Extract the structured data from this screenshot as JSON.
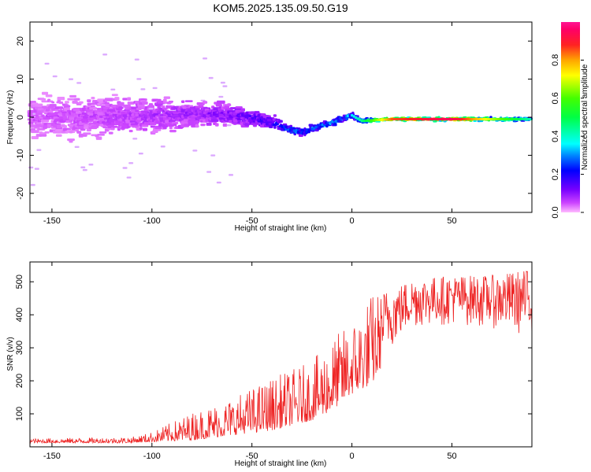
{
  "title": "KOM5.2025.135.09.50.G19",
  "colors": {
    "snr_line": "#ee2222",
    "spec_outer": "#d9a6ff",
    "spec_core": "#7a1fff",
    "spec_dark": "#3a16d8"
  },
  "chart_data": [
    {
      "type": "heatmap",
      "panel": "top",
      "xlabel": "Height of straight line (km)",
      "ylabel": "Frequency (Hz)",
      "xlim": [
        -161,
        90
      ],
      "ylim": [
        -25,
        25
      ],
      "x_ticks": [
        -150,
        -100,
        -50,
        0,
        50
      ],
      "y_ticks": [
        -20,
        -10,
        0,
        10,
        20
      ],
      "colorbar": {
        "label": "Normalized spectral amplitude",
        "range": [
          0,
          1
        ],
        "ticks": [
          "0.0",
          "0.2",
          "0.4",
          "0.6",
          "0.8"
        ],
        "tick_values": [
          0,
          0.2,
          0.4,
          0.6,
          0.8
        ],
        "colormap": "pink-purple-blue-cyan-green-yellow-red-magenta"
      },
      "ridge": {
        "x": [
          -160,
          -130,
          -100,
          -75,
          -50,
          -40,
          -30,
          -25,
          -20,
          -10,
          0,
          5,
          20,
          50,
          90
        ],
        "freq": [
          0,
          0,
          0.5,
          1,
          0,
          -1.5,
          -3.5,
          -4,
          -3,
          -1.5,
          0.5,
          -1,
          -0.5,
          -0.5,
          -0.5
        ],
        "amplitude": [
          0.05,
          0.06,
          0.08,
          0.1,
          0.15,
          0.2,
          0.32,
          0.3,
          0.3,
          0.35,
          0.35,
          0.45,
          0.85,
          0.95,
          0.4
        ],
        "spread_hz": [
          7,
          7,
          6,
          4,
          3,
          2.5,
          1.5,
          1.2,
          1.2,
          1,
          1,
          0.8,
          0.6,
          0.6,
          0.6
        ]
      }
    },
    {
      "type": "line",
      "panel": "bottom",
      "xlabel": "Height of straight line (km)",
      "ylabel": "SNR (v/v)",
      "xlim": [
        -161,
        90
      ],
      "ylim": [
        0,
        560
      ],
      "x_ticks": [
        -150,
        -100,
        -50,
        0,
        50
      ],
      "y_ticks": [
        100,
        200,
        300,
        400,
        500
      ],
      "series": [
        {
          "envelope_x": [
            -161,
            -110,
            -100,
            -80,
            -60,
            -40,
            -20,
            -10,
            0,
            10,
            20,
            30,
            50,
            70,
            90
          ],
          "envelope_low": [
            12,
            12,
            15,
            20,
            35,
            50,
            80,
            110,
            160,
            190,
            300,
            360,
            370,
            360,
            330
          ],
          "envelope_high": [
            25,
            30,
            45,
            105,
            150,
            210,
            260,
            330,
            380,
            470,
            480,
            510,
            520,
            520,
            540
          ]
        }
      ]
    }
  ]
}
